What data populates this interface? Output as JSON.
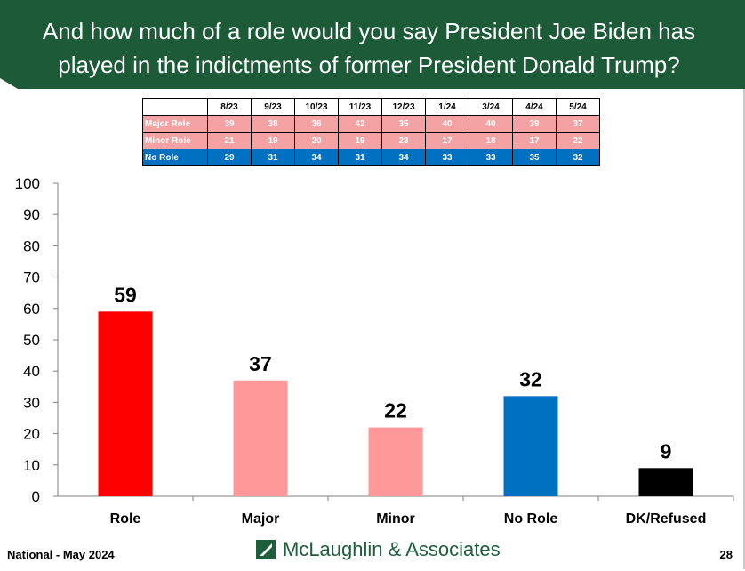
{
  "header": {
    "title": "And how much of a role would you say President Joe Biden has played in the indictments of former President Donald Trump?",
    "color": "#1d5b38"
  },
  "trend_table": {
    "columns": [
      "8/23",
      "9/23",
      "10/23",
      "11/23",
      "12/23",
      "1/24",
      "3/24",
      "4/24",
      "5/24"
    ],
    "rows": [
      {
        "label": "Major Role",
        "values": [
          "39",
          "38",
          "36",
          "42",
          "35",
          "40",
          "40",
          "39",
          "37"
        ]
      },
      {
        "label": "Minor Role",
        "values": [
          "21",
          "19",
          "20",
          "19",
          "23",
          "17",
          "18",
          "17",
          "22"
        ]
      },
      {
        "label": "No Role",
        "values": [
          "29",
          "31",
          "34",
          "31",
          "34",
          "33",
          "33",
          "35",
          "32"
        ]
      }
    ]
  },
  "chart_data": {
    "type": "bar",
    "categories": [
      "Role",
      "Major",
      "Minor",
      "No Role",
      "DK/Refused"
    ],
    "values": [
      59,
      37,
      22,
      32,
      9
    ],
    "colors": [
      "#ff0000",
      "#ff9999",
      "#ff9999",
      "#0070c0",
      "#000000"
    ],
    "ylim": [
      0,
      100
    ],
    "yticks": [
      0,
      10,
      20,
      30,
      40,
      50,
      60,
      70,
      80,
      90,
      100
    ],
    "grid": false
  },
  "footer": {
    "left": "National - May 2024",
    "logo_text": "McLaughlin & Associates",
    "page_number": "28"
  }
}
